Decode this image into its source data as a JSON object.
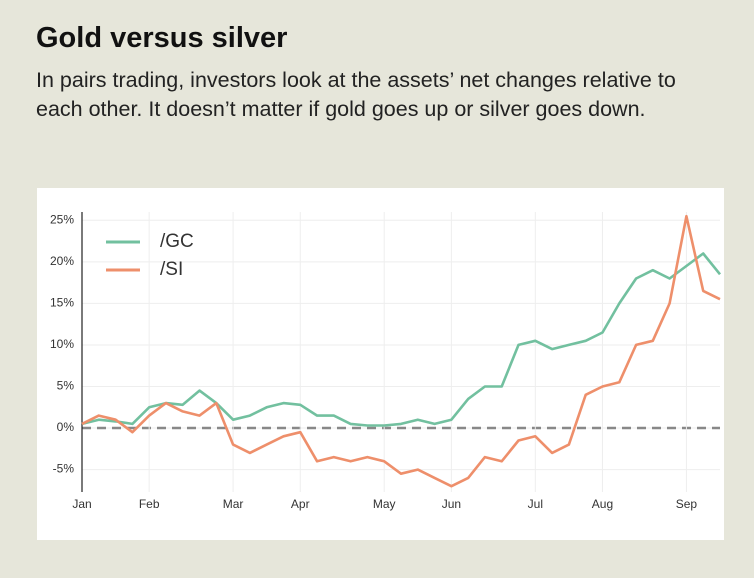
{
  "chart_data": {
    "type": "line",
    "title": "Gold versus silver",
    "subtitle": "In pairs trading, investors look at the assets’ net changes relative to each other. It doesn’t matter if gold goes up or silver goes down.",
    "categories": [
      "Jan",
      null,
      null,
      null,
      "Feb",
      null,
      null,
      null,
      null,
      "Mar",
      null,
      null,
      null,
      "Apr",
      null,
      null,
      null,
      null,
      "May",
      null,
      null,
      null,
      "Jun",
      null,
      null,
      null,
      null,
      "Jul",
      null,
      null,
      null,
      "Aug",
      null,
      null,
      null,
      null,
      "Sep",
      null,
      null
    ],
    "series": [
      {
        "name": "/GC",
        "color": "#72c09f",
        "values": [
          0.5,
          1,
          0.8,
          0.5,
          2.5,
          3,
          2.8,
          4.5,
          3,
          1,
          1.5,
          2.5,
          3,
          2.8,
          1.5,
          1.5,
          0.5,
          0.3,
          0.3,
          0.5,
          1,
          0.5,
          1,
          3.5,
          5,
          5,
          10,
          10.5,
          9.5,
          10,
          10.5,
          11.5,
          15,
          18,
          19,
          18,
          19.5,
          21,
          18.5
        ]
      },
      {
        "name": "/SI",
        "color": "#ee8f6b",
        "values": [
          0.5,
          1.5,
          1,
          -0.5,
          1.5,
          3,
          2,
          1.5,
          3,
          -2,
          -3,
          -2,
          -1,
          -0.5,
          -4,
          -3.5,
          -4,
          -3.5,
          -4,
          -5.5,
          -5,
          -6,
          -7,
          -6,
          -3.5,
          -4,
          -1.5,
          -1,
          -3,
          -2,
          4,
          5,
          5.5,
          10,
          10.5,
          15,
          25.5,
          16.5,
          15.5
        ]
      }
    ],
    "ylim": [
      -7.7,
      26
    ],
    "yticks": [
      {
        "value": -5,
        "label": "-5%"
      },
      {
        "value": 0,
        "label": "0%"
      },
      {
        "value": 5,
        "label": "5%"
      },
      {
        "value": 10,
        "label": "10%"
      },
      {
        "value": 15,
        "label": "15%"
      },
      {
        "value": 20,
        "label": "20%"
      },
      {
        "value": 25,
        "label": "25%"
      }
    ],
    "grid": true,
    "legend": "upper left"
  }
}
